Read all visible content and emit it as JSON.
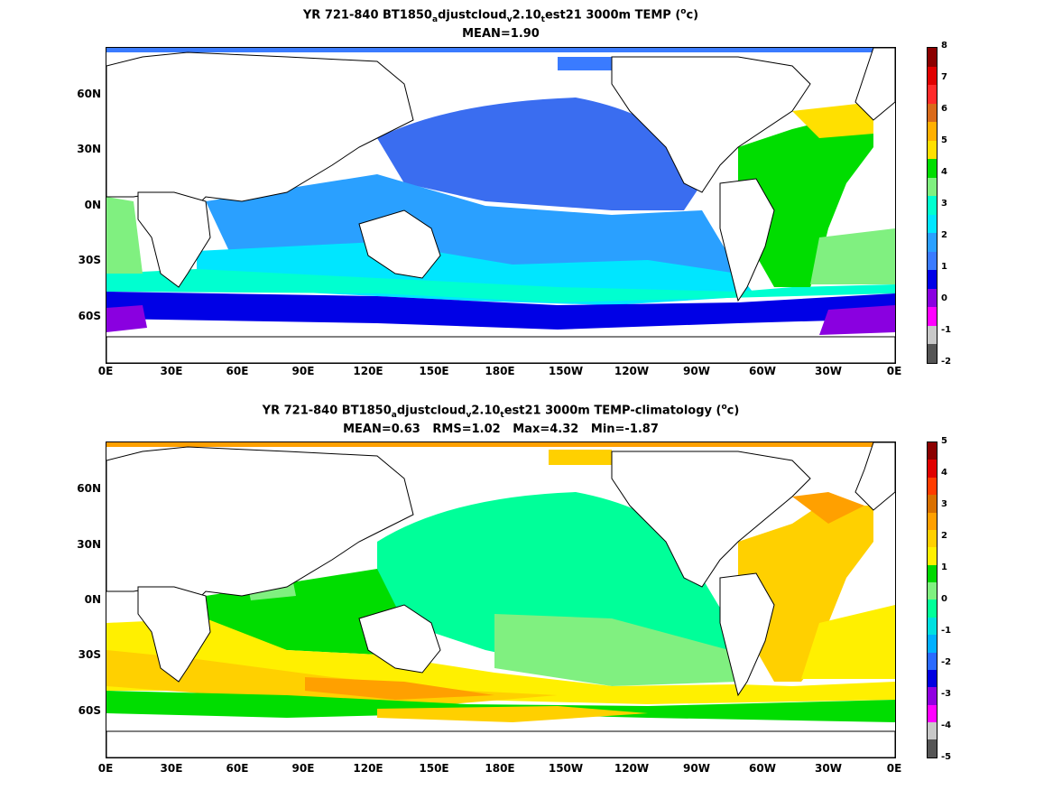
{
  "panel_top": {
    "title_main": "YR 721-840 BT1850",
    "title_sub_a": "a",
    "title_mid": "djustcloud",
    "title_sub_v": "v",
    "title_mid2": "2.10",
    "title_sub_t": "t",
    "title_end": "est21 3000m TEMP (",
    "title_unit_sup": "o",
    "title_unit": "c)",
    "subtitle": "MEAN=1.90",
    "lat_ticks": [
      "60N",
      "30N",
      "0N",
      "30S",
      "60S"
    ],
    "lon_ticks": [
      "0E",
      "30E",
      "60E",
      "90E",
      "120E",
      "150E",
      "180E",
      "150W",
      "120W",
      "90W",
      "60W",
      "30W",
      "0E"
    ],
    "colorbar_ticks": [
      "8",
      "7",
      "6",
      "5",
      "4",
      "3",
      "2",
      "1",
      "0",
      "-1",
      "-2"
    ],
    "colorbar_colors": [
      "#8b0000",
      "#e00000",
      "#ff2a2a",
      "#d96a1a",
      "#ffb000",
      "#ffe000",
      "#00dd00",
      "#80f080",
      "#00ffd0",
      "#00e6ff",
      "#2aa0ff",
      "#3a7bff",
      "#0000e6",
      "#8a00e0",
      "#ff00ff",
      "#c8c8c8",
      "#555555"
    ]
  },
  "panel_bottom": {
    "title_main": "YR 721-840 BT1850",
    "title_sub_a": "a",
    "title_mid": "djustcloud",
    "title_sub_v": "v",
    "title_mid2": "2.10",
    "title_sub_t": "t",
    "title_end": "est21 3000m TEMP-climatology (",
    "title_unit_sup": "o",
    "title_unit": "c)",
    "subtitle": "MEAN=0.63   RMS=1.02   Max=4.32   Min=-1.87",
    "lat_ticks": [
      "60N",
      "30N",
      "0N",
      "30S",
      "60S"
    ],
    "lon_ticks": [
      "0E",
      "30E",
      "60E",
      "90E",
      "120E",
      "150E",
      "180E",
      "150W",
      "120W",
      "90W",
      "60W",
      "30W",
      "0E"
    ],
    "colorbar_ticks": [
      "5",
      "4",
      "3",
      "2",
      "1",
      "0",
      "-1",
      "-2",
      "-3",
      "-4",
      "-5"
    ],
    "colorbar_colors": [
      "#8b0000",
      "#e00000",
      "#ff3c00",
      "#d97000",
      "#ffa000",
      "#ffd000",
      "#fff000",
      "#00d800",
      "#80f080",
      "#00ff99",
      "#00e0e0",
      "#00b0ff",
      "#2a6aff",
      "#0000e0",
      "#9000e0",
      "#ff00ff",
      "#c8c8c8",
      "#555555"
    ]
  }
}
